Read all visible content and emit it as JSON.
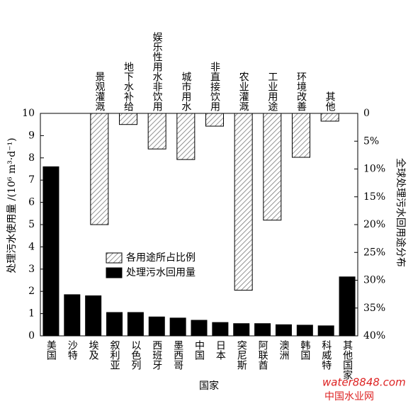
{
  "chart_data": [
    {
      "type": "bar",
      "x_label": "国家",
      "y_label": "处理污水使用量 /(10⁶ m³·d⁻¹)",
      "categories": [
        "美国",
        "沙特",
        "埃及",
        "叙利亚",
        "以色列",
        "西班牙",
        "墨西哥",
        "中国",
        "日本",
        "突尼斯",
        "阿联酋",
        "澳洲",
        "韩国",
        "科威特",
        "其他国家"
      ],
      "series": [
        {
          "name": "处理污水回用量",
          "color": "#000000",
          "values": [
            7.6,
            1.85,
            1.8,
            1.05,
            1.05,
            0.85,
            0.8,
            0.7,
            0.6,
            0.55,
            0.55,
            0.5,
            0.48,
            0.45,
            2.65
          ]
        }
      ],
      "ylim": [
        0,
        10
      ],
      "yticks": [
        0,
        1,
        2,
        3,
        4,
        5,
        6,
        7,
        8,
        9,
        10
      ]
    },
    {
      "type": "bar",
      "y2_label": "全球处理污水回用途分布",
      "categories": [
        "景观灌溉",
        "地下水补给",
        "娱乐性用水非饮用",
        "城市用水",
        "非直接饮用",
        "农业灌溉",
        "工业用途",
        "环境改善",
        "其他"
      ],
      "series": [
        {
          "name": "各用途所占比例",
          "color": "#999999",
          "pattern": "hatch",
          "axis": "y2",
          "values": [
            20,
            2,
            6.4,
            8.3,
            2.3,
            31.8,
            19.2,
            7.9,
            1.4
          ]
        }
      ],
      "y2lim": [
        0,
        40
      ],
      "y2_inverted": true,
      "y2ticks": [
        0,
        {
          "value": 5,
          "label": "5%"
        },
        {
          "value": 10,
          "label": "10%"
        },
        {
          "value": 15,
          "label": "15%"
        },
        {
          "value": 20,
          "label": "20%"
        },
        {
          "value": 25,
          "label": "25%"
        },
        {
          "value": 30,
          "label": "30%"
        },
        {
          "value": 35,
          "label": "35%"
        },
        {
          "value": 40,
          "label": "40%"
        }
      ]
    }
  ],
  "watermark": {
    "brand": "water8848.com",
    "name": "中国水业网"
  }
}
